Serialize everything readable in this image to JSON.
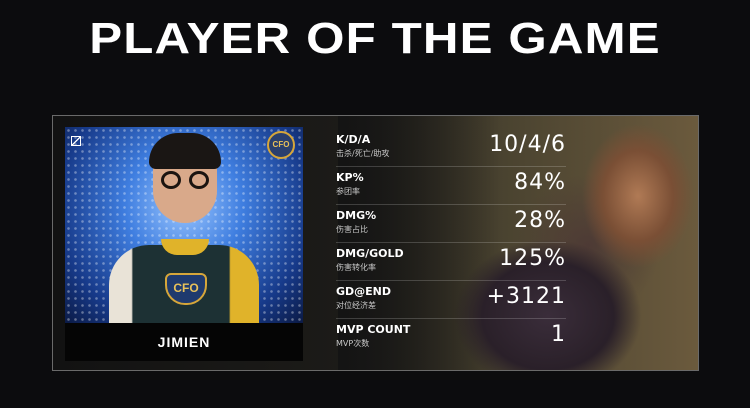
{
  "title": "PLAYER OF THE GAME",
  "player": {
    "name": "JIMIEN",
    "team_logo": "CFO"
  },
  "stats": [
    {
      "label": "K/D/A",
      "sub": "击杀/死亡/助攻",
      "value": "10/4/6"
    },
    {
      "label": "KP%",
      "sub": "参团率",
      "value": "84%"
    },
    {
      "label": "DMG%",
      "sub": "伤害占比",
      "value": "28%"
    },
    {
      "label": "DMG/GOLD",
      "sub": "伤害转化率",
      "value": "125%"
    },
    {
      "label": "GD@END",
      "sub": "对位经济差",
      "value": "+3121"
    },
    {
      "label": "MVP COUNT",
      "sub": "MVP次数",
      "value": "1"
    }
  ]
}
